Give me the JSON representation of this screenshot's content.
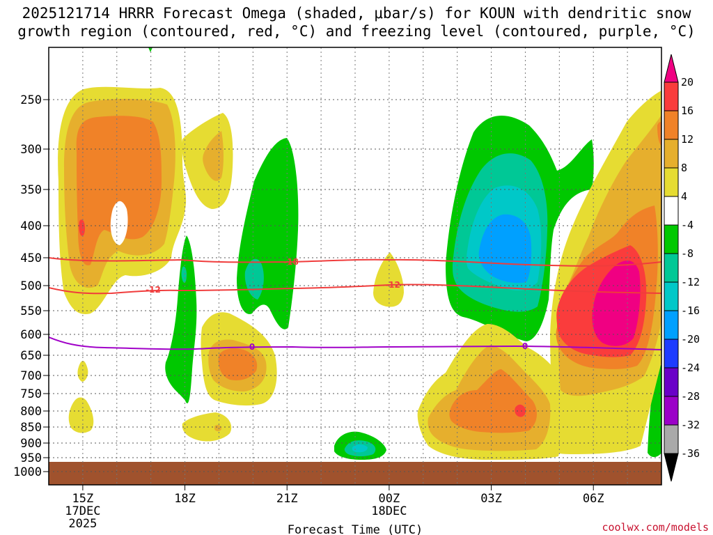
{
  "chart_data": {
    "type": "heatmap",
    "title_line1": "2025121714 HRRR Forecast Omega (shaded, μbar/s) for KOUN with dendritic snow",
    "title_line2": "growth region (contoured, red, °C) and freezing level (contoured, purple, °C)",
    "xlabel": "Forecast Time (UTC)",
    "x_ticks": [
      {
        "hour": 15,
        "label": "15Z",
        "sub1": "17DEC",
        "sub2": "2025"
      },
      {
        "hour": 18,
        "label": "18Z",
        "sub1": "",
        "sub2": ""
      },
      {
        "hour": 21,
        "label": "21Z",
        "sub1": "",
        "sub2": ""
      },
      {
        "hour": 24,
        "label": "00Z",
        "sub1": "18DEC",
        "sub2": ""
      },
      {
        "hour": 27,
        "label": "03Z",
        "sub1": "",
        "sub2": ""
      },
      {
        "hour": 30,
        "label": "06Z",
        "sub1": "",
        "sub2": ""
      }
    ],
    "xlim": [
      14,
      32
    ],
    "y_ticks": [
      250,
      300,
      350,
      400,
      450,
      500,
      550,
      600,
      650,
      700,
      750,
      800,
      850,
      900,
      950,
      1000
    ],
    "ylim": [
      1000,
      200
    ],
    "y_labels": [
      "250",
      "300",
      "350",
      "400",
      "450",
      "500",
      "550",
      "600",
      "650",
      "700",
      "750",
      "800",
      "850",
      "900",
      "950",
      "1000"
    ],
    "colorbar": {
      "levels": [
        -36,
        -32,
        -28,
        -24,
        -20,
        -16,
        -12,
        -8,
        -4,
        4,
        8,
        12,
        16,
        20
      ],
      "labels": [
        "20",
        "16",
        "12",
        "8",
        "4",
        "-4",
        "-8",
        "-12",
        "-16",
        "-20",
        "-24",
        "-28",
        "-32",
        "-36"
      ],
      "colors": [
        "#a9a9a9",
        "#9b00c8",
        "#6a00c8",
        "#1e3cff",
        "#00a0ff",
        "#00c8c8",
        "#00c896",
        "#00c800",
        "#ffffff",
        "#e6dc32",
        "#e6af2d",
        "#f08228",
        "#fa3c3c",
        "#f00082"
      ]
    },
    "contours": [
      {
        "name": "dgz-18",
        "color": "#f03c3c",
        "label": "-18"
      },
      {
        "name": "dgz-12",
        "color": "#f03c3c",
        "label": "-12"
      },
      {
        "name": "freezing-0",
        "color": "#a000c8",
        "label": "0"
      }
    ],
    "ground_color": "#a0522d"
  },
  "credit": "coolwx.com/models"
}
